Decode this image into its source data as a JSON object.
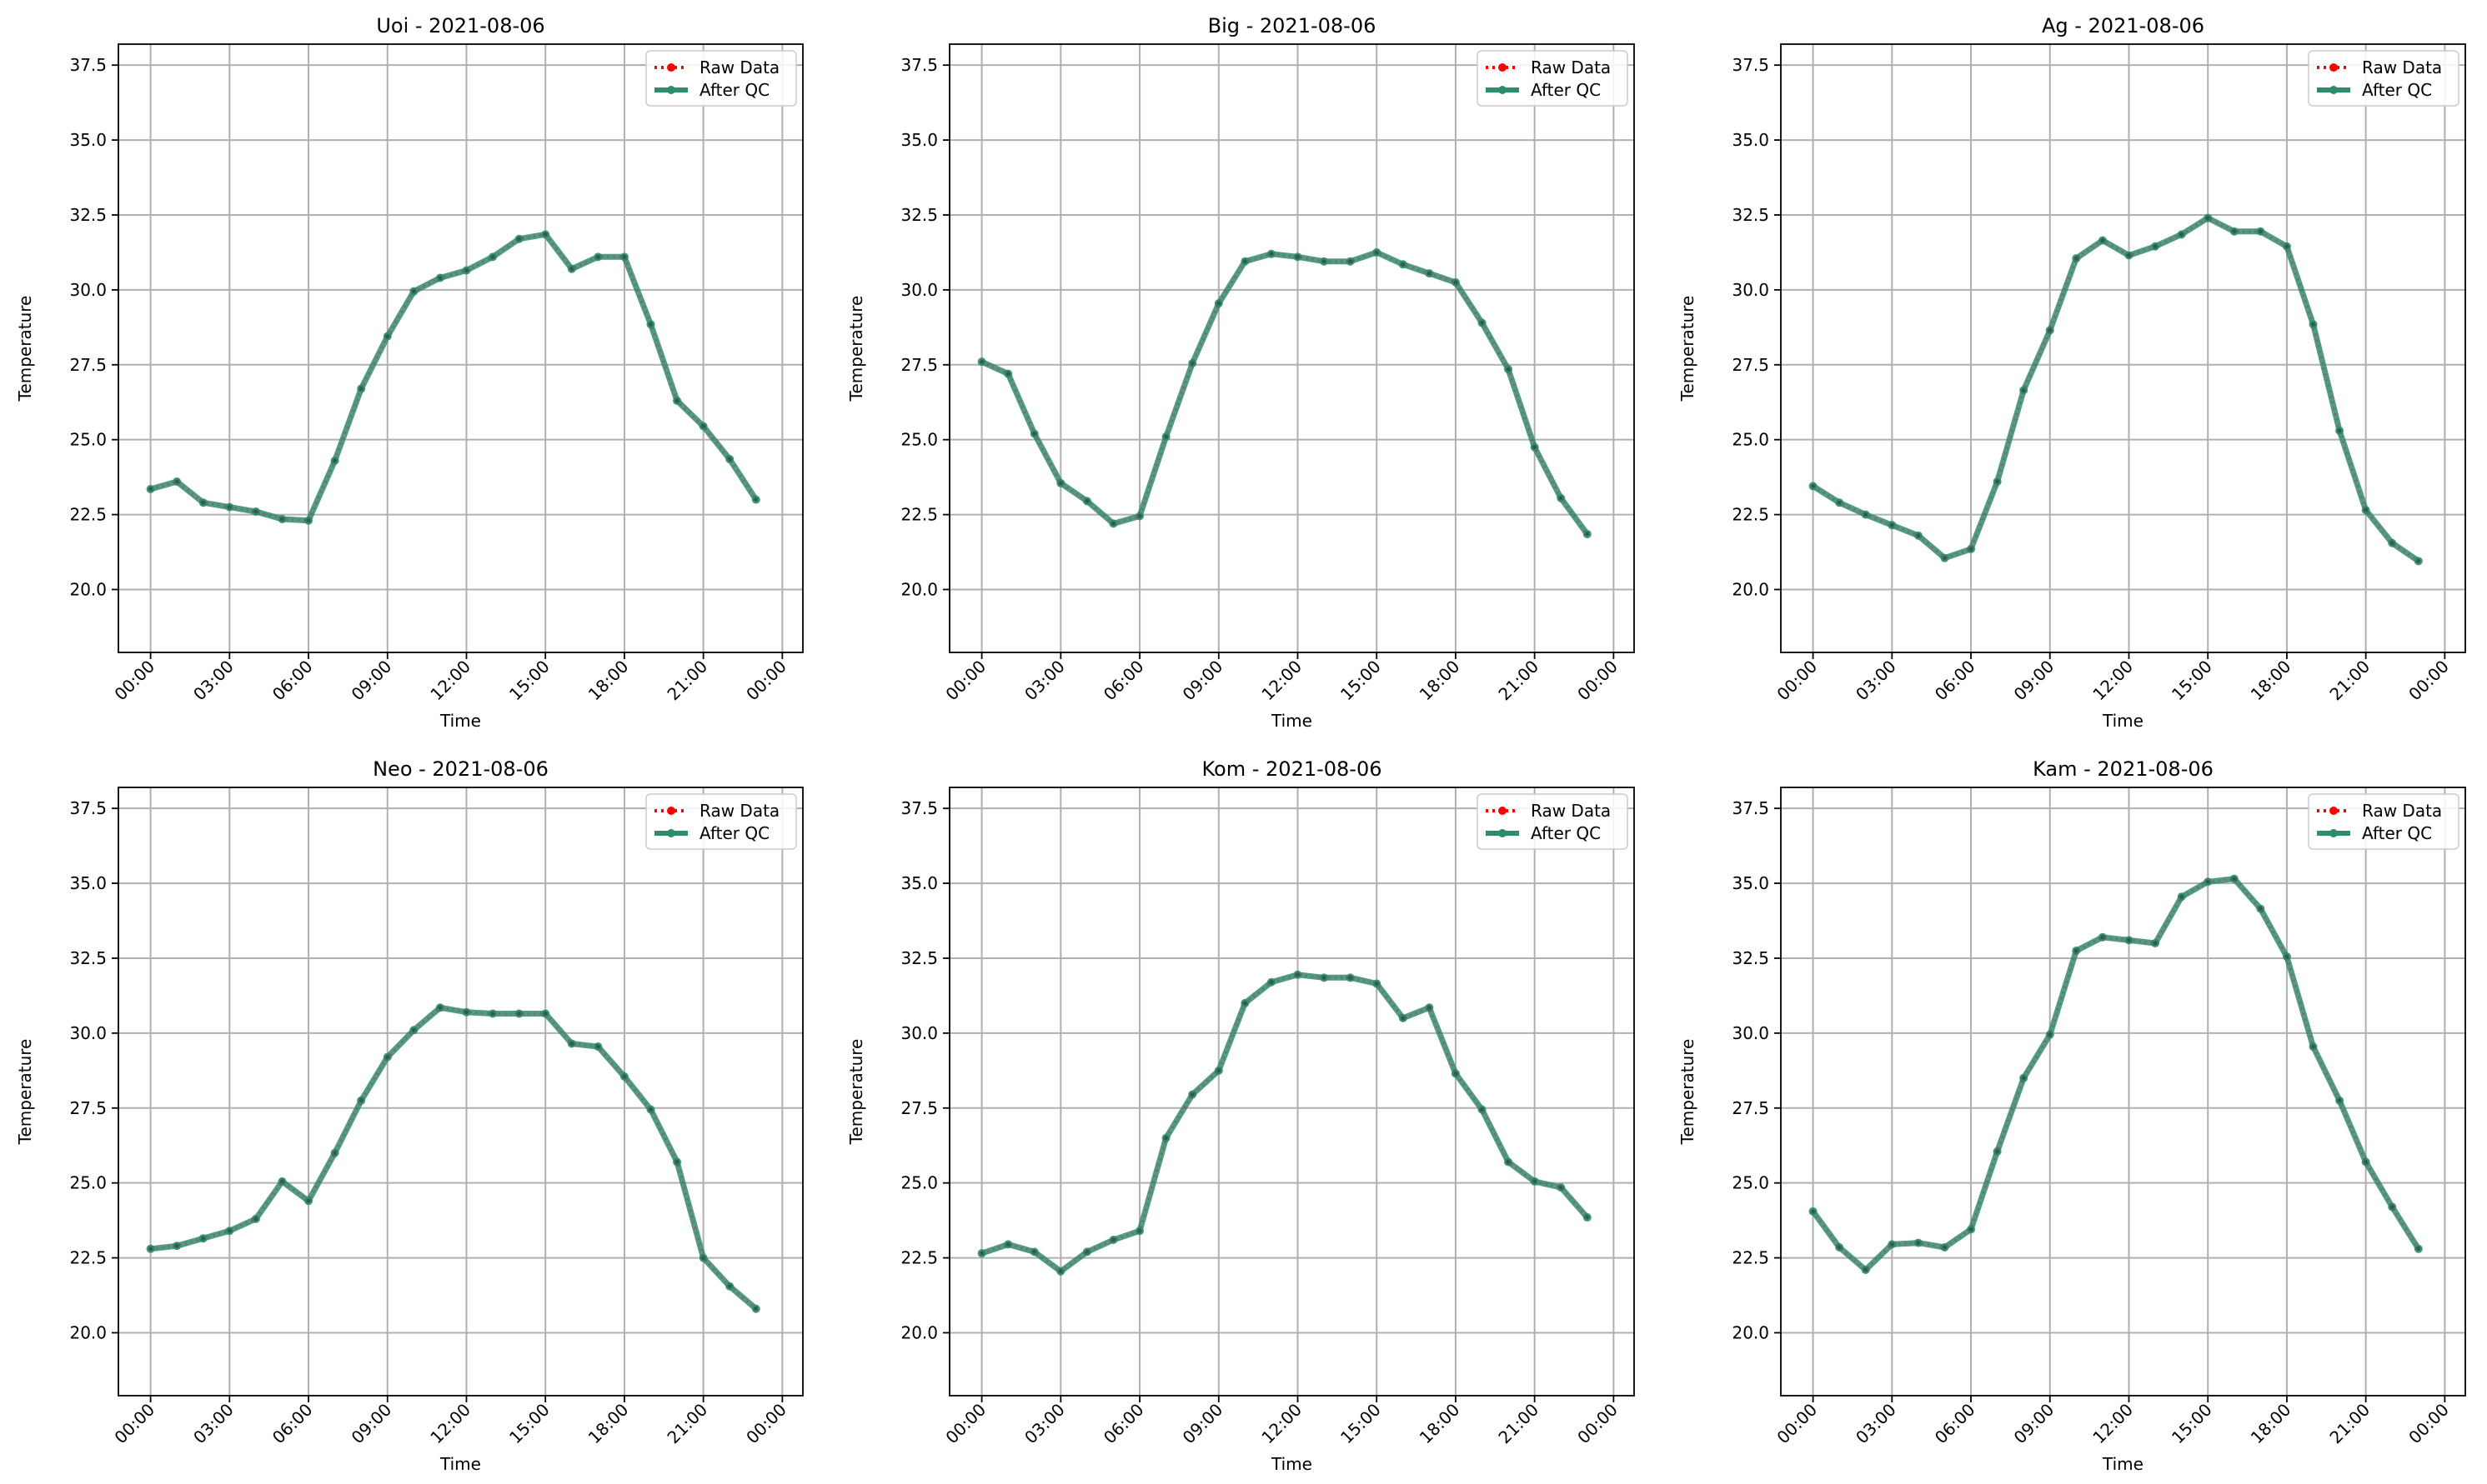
{
  "chart_data": [
    {
      "type": "line",
      "title": "Uoi - 2021-08-06",
      "xlabel": "Time",
      "ylabel": "Temperature",
      "x_tick_labels": [
        "00:00",
        "03:00",
        "06:00",
        "09:00",
        "12:00",
        "15:00",
        "18:00",
        "21:00",
        "00:00"
      ],
      "y_tick_labels": [
        "20.0",
        "22.5",
        "25.0",
        "27.5",
        "30.0",
        "32.5",
        "35.0",
        "37.5"
      ],
      "ylim": [
        17.9,
        38.2
      ],
      "grid": true,
      "legend_position": "top-right",
      "x": [
        "00:00",
        "01:00",
        "02:00",
        "03:00",
        "04:00",
        "05:00",
        "06:00",
        "07:00",
        "08:00",
        "09:00",
        "10:00",
        "11:00",
        "12:00",
        "13:00",
        "14:00",
        "15:00",
        "16:00",
        "17:00",
        "18:00",
        "19:00",
        "20:00",
        "21:00",
        "22:00",
        "23:00"
      ],
      "series": [
        {
          "name": "Raw Data",
          "color": "#ff0000",
          "values": [
            23.35,
            23.6,
            22.9,
            22.75,
            22.6,
            22.35,
            22.3,
            24.3,
            26.7,
            28.45,
            29.95,
            30.4,
            30.65,
            31.1,
            31.7,
            31.85,
            30.7,
            31.1,
            31.1,
            28.85,
            26.3,
            25.45,
            24.35,
            23.0
          ]
        },
        {
          "name": "After QC",
          "color": "#2e8b6d",
          "values": [
            23.35,
            23.6,
            22.9,
            22.75,
            22.6,
            22.35,
            22.3,
            24.3,
            26.7,
            28.45,
            29.95,
            30.4,
            30.65,
            31.1,
            31.7,
            31.85,
            30.7,
            31.1,
            31.1,
            28.85,
            26.3,
            25.45,
            24.35,
            23.0
          ]
        }
      ]
    },
    {
      "type": "line",
      "title": "Big - 2021-08-06",
      "xlabel": "Time",
      "ylabel": "Temperature",
      "x_tick_labels": [
        "00:00",
        "03:00",
        "06:00",
        "09:00",
        "12:00",
        "15:00",
        "18:00",
        "21:00",
        "00:00"
      ],
      "y_tick_labels": [
        "20.0",
        "22.5",
        "25.0",
        "27.5",
        "30.0",
        "32.5",
        "35.0",
        "37.5"
      ],
      "ylim": [
        17.9,
        38.2
      ],
      "grid": true,
      "legend_position": "top-right",
      "x": [
        "00:00",
        "01:00",
        "02:00",
        "03:00",
        "04:00",
        "05:00",
        "06:00",
        "07:00",
        "08:00",
        "09:00",
        "10:00",
        "11:00",
        "12:00",
        "13:00",
        "14:00",
        "15:00",
        "16:00",
        "17:00",
        "18:00",
        "19:00",
        "20:00",
        "21:00",
        "22:00",
        "23:00"
      ],
      "series": [
        {
          "name": "Raw Data",
          "color": "#ff0000",
          "values": [
            27.6,
            27.2,
            25.2,
            23.55,
            22.95,
            22.2,
            22.45,
            25.1,
            27.55,
            29.55,
            30.95,
            31.2,
            31.1,
            30.95,
            30.95,
            31.25,
            30.85,
            30.55,
            30.25,
            28.9,
            27.35,
            24.75,
            23.05,
            21.85
          ]
        },
        {
          "name": "After QC",
          "color": "#2e8b6d",
          "values": [
            27.6,
            27.2,
            25.2,
            23.55,
            22.95,
            22.2,
            22.45,
            25.1,
            27.55,
            29.55,
            30.95,
            31.2,
            31.1,
            30.95,
            30.95,
            31.25,
            30.85,
            30.55,
            30.25,
            28.9,
            27.35,
            24.75,
            23.05,
            21.85
          ]
        }
      ]
    },
    {
      "type": "line",
      "title": "Ag - 2021-08-06",
      "xlabel": "Time",
      "ylabel": "Temperature",
      "x_tick_labels": [
        "00:00",
        "03:00",
        "06:00",
        "09:00",
        "12:00",
        "15:00",
        "18:00",
        "21:00",
        "00:00"
      ],
      "y_tick_labels": [
        "20.0",
        "22.5",
        "25.0",
        "27.5",
        "30.0",
        "32.5",
        "35.0",
        "37.5"
      ],
      "ylim": [
        17.9,
        38.2
      ],
      "grid": true,
      "legend_position": "top-right",
      "x": [
        "00:00",
        "01:00",
        "02:00",
        "03:00",
        "04:00",
        "05:00",
        "06:00",
        "07:00",
        "08:00",
        "09:00",
        "10:00",
        "11:00",
        "12:00",
        "13:00",
        "14:00",
        "15:00",
        "16:00",
        "17:00",
        "18:00",
        "19:00",
        "20:00",
        "21:00",
        "22:00",
        "23:00"
      ],
      "series": [
        {
          "name": "Raw Data",
          "color": "#ff0000",
          "values": [
            23.45,
            22.9,
            22.5,
            22.15,
            21.8,
            21.05,
            21.35,
            23.6,
            26.65,
            28.65,
            31.05,
            31.65,
            31.15,
            31.45,
            31.85,
            32.4,
            31.95,
            31.95,
            31.45,
            28.85,
            25.3,
            22.65,
            21.55,
            20.95
          ]
        },
        {
          "name": "After QC",
          "color": "#2e8b6d",
          "values": [
            23.45,
            22.9,
            22.5,
            22.15,
            21.8,
            21.05,
            21.35,
            23.6,
            26.65,
            28.65,
            31.05,
            31.65,
            31.15,
            31.45,
            31.85,
            32.4,
            31.95,
            31.95,
            31.45,
            28.85,
            25.3,
            22.65,
            21.55,
            20.95
          ]
        }
      ]
    },
    {
      "type": "line",
      "title": "Neo - 2021-08-06",
      "xlabel": "Time",
      "ylabel": "Temperature",
      "x_tick_labels": [
        "00:00",
        "03:00",
        "06:00",
        "09:00",
        "12:00",
        "15:00",
        "18:00",
        "21:00",
        "00:00"
      ],
      "y_tick_labels": [
        "20.0",
        "22.5",
        "25.0",
        "27.5",
        "30.0",
        "32.5",
        "35.0",
        "37.5"
      ],
      "ylim": [
        17.9,
        38.2
      ],
      "grid": true,
      "legend_position": "top-right",
      "x": [
        "00:00",
        "01:00",
        "02:00",
        "03:00",
        "04:00",
        "05:00",
        "06:00",
        "07:00",
        "08:00",
        "09:00",
        "10:00",
        "11:00",
        "12:00",
        "13:00",
        "14:00",
        "15:00",
        "16:00",
        "17:00",
        "18:00",
        "19:00",
        "20:00",
        "21:00",
        "22:00",
        "23:00"
      ],
      "series": [
        {
          "name": "Raw Data",
          "color": "#ff0000",
          "values": [
            22.8,
            22.9,
            23.15,
            23.4,
            23.8,
            25.05,
            24.4,
            26.0,
            27.75,
            29.2,
            30.1,
            30.85,
            30.7,
            30.65,
            30.65,
            30.65,
            29.65,
            29.55,
            28.55,
            27.45,
            25.7,
            22.5,
            21.55,
            20.8
          ]
        },
        {
          "name": "After QC",
          "color": "#2e8b6d",
          "values": [
            22.8,
            22.9,
            23.15,
            23.4,
            23.8,
            25.05,
            24.4,
            26.0,
            27.75,
            29.2,
            30.1,
            30.85,
            30.7,
            30.65,
            30.65,
            30.65,
            29.65,
            29.55,
            28.55,
            27.45,
            25.7,
            22.5,
            21.55,
            20.8
          ]
        }
      ]
    },
    {
      "type": "line",
      "title": "Kom - 2021-08-06",
      "xlabel": "Time",
      "ylabel": "Temperature",
      "x_tick_labels": [
        "00:00",
        "03:00",
        "06:00",
        "09:00",
        "12:00",
        "15:00",
        "18:00",
        "21:00",
        "00:00"
      ],
      "y_tick_labels": [
        "20.0",
        "22.5",
        "25.0",
        "27.5",
        "30.0",
        "32.5",
        "35.0",
        "37.5"
      ],
      "ylim": [
        17.9,
        38.2
      ],
      "grid": true,
      "legend_position": "top-right",
      "x": [
        "00:00",
        "01:00",
        "02:00",
        "03:00",
        "04:00",
        "05:00",
        "06:00",
        "07:00",
        "08:00",
        "09:00",
        "10:00",
        "11:00",
        "12:00",
        "13:00",
        "14:00",
        "15:00",
        "16:00",
        "17:00",
        "18:00",
        "19:00",
        "20:00",
        "21:00",
        "22:00",
        "23:00"
      ],
      "series": [
        {
          "name": "Raw Data",
          "color": "#ff0000",
          "values": [
            22.65,
            22.95,
            22.7,
            22.05,
            22.7,
            23.1,
            23.4,
            26.5,
            27.95,
            28.75,
            31.0,
            31.7,
            31.95,
            31.85,
            31.85,
            31.65,
            30.5,
            30.85,
            28.65,
            27.45,
            25.7,
            25.05,
            24.85,
            23.85
          ]
        },
        {
          "name": "After QC",
          "color": "#2e8b6d",
          "values": [
            22.65,
            22.95,
            22.7,
            22.05,
            22.7,
            23.1,
            23.4,
            26.5,
            27.95,
            28.75,
            31.0,
            31.7,
            31.95,
            31.85,
            31.85,
            31.65,
            30.5,
            30.85,
            28.65,
            27.45,
            25.7,
            25.05,
            24.85,
            23.85
          ]
        }
      ]
    },
    {
      "type": "line",
      "title": "Kam - 2021-08-06",
      "xlabel": "Time",
      "ylabel": "Temperature",
      "x_tick_labels": [
        "00:00",
        "03:00",
        "06:00",
        "09:00",
        "12:00",
        "15:00",
        "18:00",
        "21:00",
        "00:00"
      ],
      "y_tick_labels": [
        "20.0",
        "22.5",
        "25.0",
        "27.5",
        "30.0",
        "32.5",
        "35.0",
        "37.5"
      ],
      "ylim": [
        17.9,
        38.2
      ],
      "grid": true,
      "legend_position": "top-right",
      "x": [
        "00:00",
        "01:00",
        "02:00",
        "03:00",
        "04:00",
        "05:00",
        "06:00",
        "07:00",
        "08:00",
        "09:00",
        "10:00",
        "11:00",
        "12:00",
        "13:00",
        "14:00",
        "15:00",
        "16:00",
        "17:00",
        "18:00",
        "19:00",
        "20:00",
        "21:00",
        "22:00",
        "23:00"
      ],
      "series": [
        {
          "name": "Raw Data",
          "color": "#ff0000",
          "values": [
            24.05,
            22.85,
            22.1,
            22.95,
            23.0,
            22.85,
            23.45,
            26.05,
            28.5,
            29.95,
            32.75,
            33.2,
            33.1,
            33.0,
            34.55,
            35.05,
            35.15,
            34.15,
            32.55,
            29.55,
            27.75,
            25.7,
            24.2,
            22.8
          ]
        },
        {
          "name": "After QC",
          "color": "#2e8b6d",
          "values": [
            24.05,
            22.85,
            22.1,
            22.95,
            23.0,
            22.85,
            23.45,
            26.05,
            28.5,
            29.95,
            32.75,
            33.2,
            33.1,
            33.0,
            34.55,
            35.05,
            35.15,
            34.15,
            32.55,
            29.55,
            27.75,
            25.7,
            24.2,
            22.8
          ]
        }
      ]
    }
  ]
}
